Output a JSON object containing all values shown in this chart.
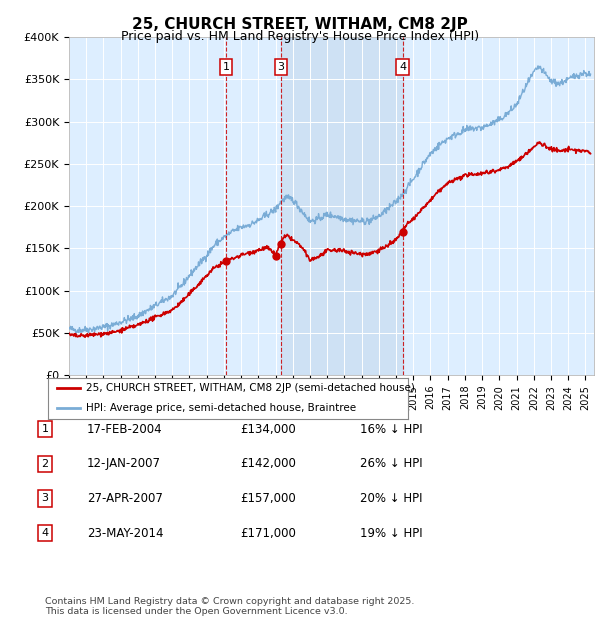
{
  "title": "25, CHURCH STREET, WITHAM, CM8 2JP",
  "subtitle": "Price paid vs. HM Land Registry's House Price Index (HPI)",
  "ylabel_ticks": [
    "£0",
    "£50K",
    "£100K",
    "£150K",
    "£200K",
    "£250K",
    "£300K",
    "£350K",
    "£400K"
  ],
  "ylim": [
    0,
    400000
  ],
  "xlim_start": 1995.0,
  "xlim_end": 2025.5,
  "hpi_color": "#7aacd6",
  "price_color": "#cc0000",
  "background_color": "#ddeeff",
  "shade_color": "#c8dcf0",
  "transactions": [
    {
      "num": 1,
      "date_str": "17-FEB-2004",
      "date_x": 2004.12,
      "price": 134000,
      "show_on_chart": true
    },
    {
      "num": 2,
      "date_str": "12-JAN-2007",
      "date_x": 2007.04,
      "price": 142000,
      "show_on_chart": false
    },
    {
      "num": 3,
      "date_str": "27-APR-2007",
      "date_x": 2007.32,
      "price": 157000,
      "show_on_chart": true
    },
    {
      "num": 4,
      "date_str": "23-MAY-2014",
      "date_x": 2014.39,
      "price": 171000,
      "show_on_chart": true
    }
  ],
  "shade_x1": 2007.32,
  "shade_x2": 2014.39,
  "legend_line1": "25, CHURCH STREET, WITHAM, CM8 2JP (semi-detached house)",
  "legend_line2": "HPI: Average price, semi-detached house, Braintree",
  "footer_line1": "Contains HM Land Registry data © Crown copyright and database right 2025.",
  "footer_line2": "This data is licensed under the Open Government Licence v3.0.",
  "table_rows": [
    {
      "num": "1",
      "date": "17-FEB-2004",
      "price": "£134,000",
      "pct": "16% ↓ HPI"
    },
    {
      "num": "2",
      "date": "12-JAN-2007",
      "price": "£142,000",
      "pct": "26% ↓ HPI"
    },
    {
      "num": "3",
      "date": "27-APR-2007",
      "price": "£157,000",
      "pct": "20% ↓ HPI"
    },
    {
      "num": "4",
      "date": "23-MAY-2014",
      "price": "£171,000",
      "pct": "19% ↓ HPI"
    }
  ]
}
